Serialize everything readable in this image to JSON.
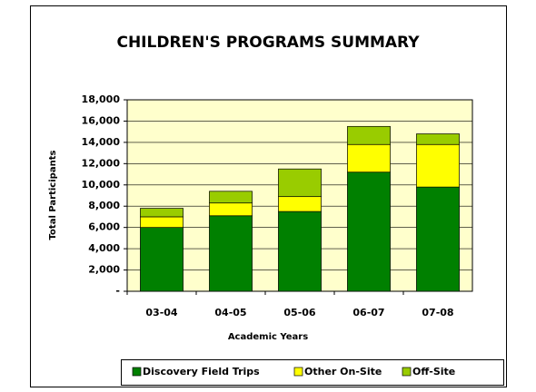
{
  "chart_data": {
    "type": "stacked_bar",
    "title": "CHILDREN'S PROGRAMS SUMMARY",
    "x_label": "Academic Years",
    "y_label": "Total Participants",
    "categories": [
      "03-04",
      "04-05",
      "05-06",
      "06-07",
      "07-08"
    ],
    "series": [
      {
        "name": "Discovery Field Trips",
        "color": "#008000",
        "values": [
          6000,
          7100,
          7500,
          11200,
          9800
        ]
      },
      {
        "name": "Other On-Site",
        "color": "#ffff00",
        "values": [
          1000,
          1200,
          1400,
          2600,
          4000
        ]
      },
      {
        "name": "Off-Site",
        "color": "#99cc00",
        "values": [
          800,
          1100,
          2600,
          1700,
          1000
        ]
      }
    ],
    "ylim": [
      0,
      18000
    ],
    "yticks": [
      {
        "value": 0,
        "label": "-"
      },
      {
        "value": 2000,
        "label": "2,000"
      },
      {
        "value": 4000,
        "label": "4,000"
      },
      {
        "value": 6000,
        "label": "6,000"
      },
      {
        "value": 8000,
        "label": "8,000"
      },
      {
        "value": 10000,
        "label": "10,000"
      },
      {
        "value": 12000,
        "label": "12,000"
      },
      {
        "value": 14000,
        "label": "14,000"
      },
      {
        "value": 16000,
        "label": "16,000"
      },
      {
        "value": 18000,
        "label": "18,000"
      }
    ],
    "grid": true,
    "legend": "bottom",
    "plot_background": "#ffffcc"
  }
}
